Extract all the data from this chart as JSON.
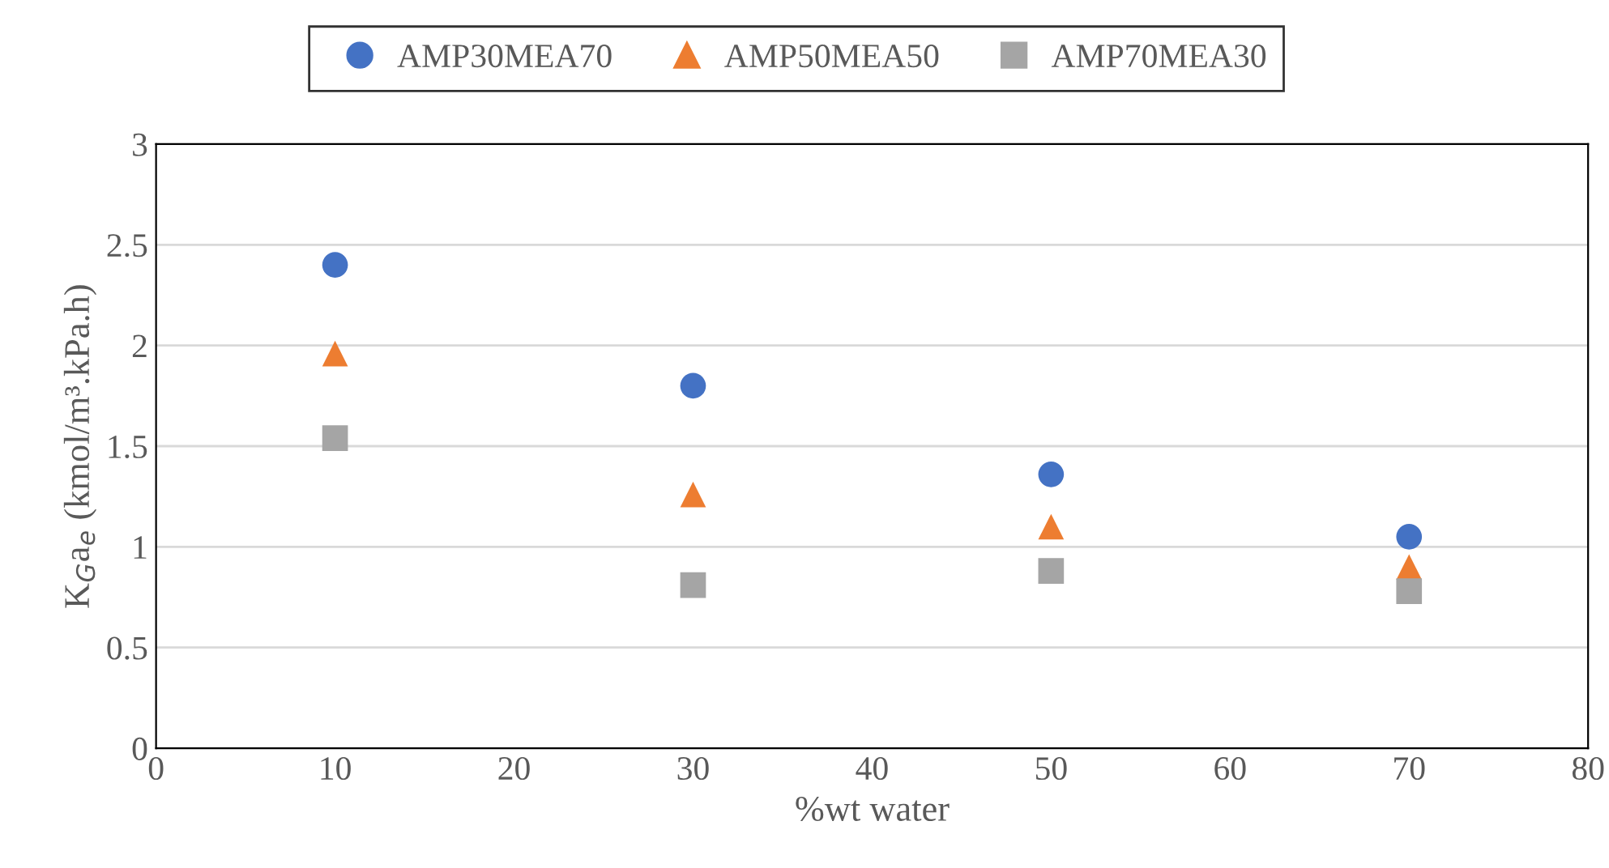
{
  "chart_data": {
    "type": "scatter",
    "xlabel": "%wt water",
    "ylabel": "K$_{G}$a$_{e}$ (kmol/m³.kPa.h)",
    "x": [
      10,
      30,
      50,
      70
    ],
    "series": [
      {
        "name": "AMP30MEA70",
        "color": "#4472c4",
        "marker": "circle",
        "values": [
          2.4,
          1.8,
          1.36,
          1.05
        ]
      },
      {
        "name": "AMP50MEA50",
        "color": "#ed7d31",
        "marker": "triangle",
        "values": [
          1.96,
          1.26,
          1.1,
          0.9
        ]
      },
      {
        "name": "AMP70MEA30",
        "color": "#a5a5a5",
        "marker": "square",
        "values": [
          1.54,
          0.81,
          0.88,
          0.78
        ]
      }
    ],
    "xlim": [
      0,
      80
    ],
    "xticks": [
      0,
      10,
      20,
      30,
      40,
      50,
      60,
      70,
      80
    ],
    "ylim": [
      0,
      3
    ],
    "yticks": [
      0,
      0.5,
      1,
      1.5,
      2,
      2.5,
      3
    ],
    "grid": "y",
    "legend": "top"
  }
}
